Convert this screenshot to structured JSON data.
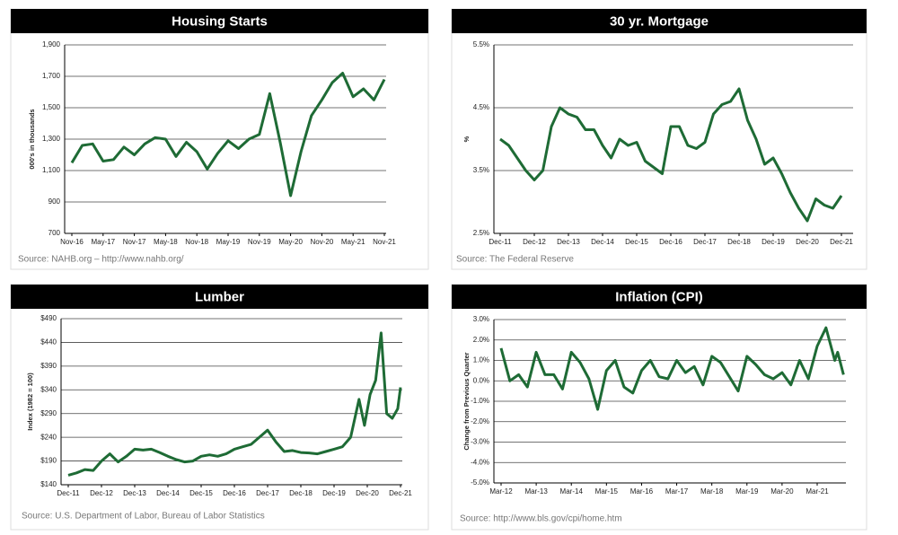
{
  "chart_data": [
    {
      "type": "line",
      "title": "Housing Starts",
      "ylabel": "000's in thousands",
      "source": "Source: NAHB.org – http://www.nahb.org/",
      "x": [
        "Nov-16",
        "Jan-17",
        "Mar-17",
        "May-17",
        "Jul-17",
        "Sep-17",
        "Nov-17",
        "Jan-18",
        "Mar-18",
        "May-18",
        "Jul-18",
        "Sep-18",
        "Nov-18",
        "Jan-19",
        "Mar-19",
        "May-19",
        "Jul-19",
        "Sep-19",
        "Nov-19",
        "Jan-20",
        "Mar-20",
        "May-20",
        "Jul-20",
        "Sep-20",
        "Nov-20",
        "Jan-21",
        "Mar-21",
        "May-21",
        "Jul-21",
        "Sep-21",
        "Nov-21"
      ],
      "series": [
        {
          "color": "#1e6b35",
          "values": [
            1150,
            1260,
            1270,
            1160,
            1170,
            1250,
            1200,
            1270,
            1310,
            1300,
            1190,
            1280,
            1220,
            1110,
            1210,
            1290,
            1240,
            1300,
            1330,
            1590,
            1280,
            940,
            1220,
            1450,
            1550,
            1660,
            1720,
            1570,
            1620,
            1550,
            1680
          ]
        }
      ],
      "ylim": [
        700,
        1900
      ],
      "yticks": [
        {
          "value": 700,
          "label": "700"
        },
        {
          "value": 900,
          "label": "900"
        },
        {
          "value": 1100,
          "label": "1,100"
        },
        {
          "value": 1300,
          "label": "1,300"
        },
        {
          "value": 1500,
          "label": "1,500"
        },
        {
          "value": 1700,
          "label": "1,700"
        },
        {
          "value": 1900,
          "label": "1,900"
        }
      ],
      "xticks": [
        "Nov-16",
        "May-17",
        "Nov-17",
        "May-18",
        "Nov-18",
        "May-19",
        "Nov-19",
        "May-20",
        "Nov-20",
        "May-21",
        "Nov-21"
      ],
      "grid": true
    },
    {
      "type": "line",
      "title": "30 yr. Mortgage",
      "ylabel": "%",
      "source": "Source:  The Federal Reserve",
      "x": [
        "Dec-11",
        "Mar-12",
        "Jun-12",
        "Sep-12",
        "Dec-12",
        "Mar-13",
        "Jun-13",
        "Sep-13",
        "Dec-13",
        "Mar-14",
        "Jun-14",
        "Sep-14",
        "Dec-14",
        "Mar-15",
        "Jun-15",
        "Sep-15",
        "Dec-15",
        "Mar-16",
        "Jun-16",
        "Sep-16",
        "Dec-16",
        "Mar-17",
        "Jun-17",
        "Sep-17",
        "Dec-17",
        "Mar-18",
        "Jun-18",
        "Sep-18",
        "Dec-18",
        "Mar-19",
        "Jun-19",
        "Sep-19",
        "Dec-19",
        "Mar-20",
        "Jun-20",
        "Sep-20",
        "Dec-20",
        "Mar-21",
        "Jun-21",
        "Sep-21",
        "Dec-21"
      ],
      "series": [
        {
          "color": "#1e6b35",
          "values": [
            4.0,
            3.9,
            3.7,
            3.5,
            3.35,
            3.5,
            4.2,
            4.5,
            4.4,
            4.35,
            4.15,
            4.15,
            3.9,
            3.7,
            4.0,
            3.9,
            3.95,
            3.65,
            3.55,
            3.45,
            4.2,
            4.2,
            3.9,
            3.85,
            3.95,
            4.4,
            4.55,
            4.6,
            4.8,
            4.3,
            4.0,
            3.6,
            3.7,
            3.45,
            3.15,
            2.9,
            2.7,
            3.05,
            2.95,
            2.9,
            3.1
          ]
        }
      ],
      "ylim": [
        2.5,
        5.5
      ],
      "yticks": [
        {
          "value": 2.5,
          "label": "2.5%"
        },
        {
          "value": 3.5,
          "label": "3.5%"
        },
        {
          "value": 4.5,
          "label": "4.5%"
        },
        {
          "value": 5.5,
          "label": "5.5%"
        }
      ],
      "xticks": [
        "Dec-11",
        "Dec-12",
        "Dec-13",
        "Dec-14",
        "Dec-15",
        "Dec-16",
        "Dec-17",
        "Dec-18",
        "Dec-19",
        "Dec-20",
        "Dec-21"
      ],
      "grid": true
    },
    {
      "type": "line",
      "title": "Lumber",
      "ylabel": "Index (1982 = 100)",
      "source": "Source:  U.S. Department of Labor, Bureau of Labor Statistics",
      "x": [
        "Dec-11",
        "Mar-12",
        "Jun-12",
        "Sep-12",
        "Dec-12",
        "Mar-13",
        "Jun-13",
        "Sep-13",
        "Dec-13",
        "Mar-14",
        "Jun-14",
        "Sep-14",
        "Dec-14",
        "Mar-15",
        "Jun-15",
        "Sep-15",
        "Dec-15",
        "Mar-16",
        "Jun-16",
        "Sep-16",
        "Dec-16",
        "Mar-17",
        "Jun-17",
        "Sep-17",
        "Dec-17",
        "Mar-18",
        "Jun-18",
        "Sep-18",
        "Dec-18",
        "Mar-19",
        "Jun-19",
        "Sep-19",
        "Dec-19",
        "Mar-20",
        "Jun-20",
        "Sep-20",
        "Nov-20",
        "Jan-21",
        "Mar-21",
        "May-21",
        "Jul-21",
        "Sep-21",
        "Nov-21",
        "Dec-21"
      ],
      "series": [
        {
          "color": "#1e6b35",
          "values": [
            160,
            165,
            172,
            170,
            190,
            205,
            188,
            200,
            215,
            213,
            215,
            208,
            200,
            193,
            188,
            190,
            200,
            203,
            200,
            205,
            215,
            220,
            225,
            240,
            255,
            230,
            210,
            212,
            208,
            207,
            205,
            210,
            215,
            220,
            240,
            320,
            265,
            330,
            360,
            460,
            290,
            280,
            300,
            345
          ]
        }
      ],
      "ylim": [
        140,
        490
      ],
      "yticks": [
        {
          "value": 140,
          "label": "$140"
        },
        {
          "value": 190,
          "label": "$190"
        },
        {
          "value": 240,
          "label": "$240"
        },
        {
          "value": 290,
          "label": "$290"
        },
        {
          "value": 340,
          "label": "$340"
        },
        {
          "value": 390,
          "label": "$390"
        },
        {
          "value": 440,
          "label": "$440"
        },
        {
          "value": 490,
          "label": "$490"
        }
      ],
      "xticks": [
        "Dec-11",
        "Dec-12",
        "Dec-13",
        "Dec-14",
        "Dec-15",
        "Dec-16",
        "Dec-17",
        "Dec-18",
        "Dec-19",
        "Dec-20",
        "Dec-21"
      ],
      "grid": true
    },
    {
      "type": "line",
      "title": "Inflation (CPI)",
      "ylabel": "Change from Previous Quarter",
      "source": "Source: http://www.bls.gov/cpi/home.htm",
      "x": [
        "Mar-12",
        "Jun-12",
        "Sep-12",
        "Dec-12",
        "Mar-13",
        "Jun-13",
        "Sep-13",
        "Dec-13",
        "Mar-14",
        "Jun-14",
        "Sep-14",
        "Dec-14",
        "Mar-15",
        "Jun-15",
        "Sep-15",
        "Dec-15",
        "Mar-16",
        "Jun-16",
        "Sep-16",
        "Dec-16",
        "Mar-17",
        "Jun-17",
        "Sep-17",
        "Dec-17",
        "Mar-18",
        "Jun-18",
        "Sep-18",
        "Dec-18",
        "Mar-19",
        "Jun-19",
        "Sep-19",
        "Dec-19",
        "Mar-20",
        "Jun-20",
        "Sep-20",
        "Dec-20",
        "Mar-21",
        "Jun-21",
        "Sep-21",
        "Oct-21",
        "Dec-21"
      ],
      "series": [
        {
          "color": "#1e6b35",
          "values": [
            1.6,
            0.0,
            0.3,
            -0.3,
            1.4,
            0.3,
            0.3,
            -0.4,
            1.4,
            0.9,
            0.1,
            -1.4,
            0.5,
            1.0,
            -0.3,
            -0.6,
            0.5,
            1.0,
            0.2,
            0.1,
            1.0,
            0.4,
            0.7,
            -0.2,
            1.2,
            0.9,
            0.2,
            -0.5,
            1.2,
            0.8,
            0.3,
            0.1,
            0.4,
            -0.2,
            1.0,
            0.1,
            1.7,
            2.6,
            1.0,
            1.4,
            0.3
          ]
        }
      ],
      "ylim": [
        -5,
        3
      ],
      "yticks": [
        {
          "value": -5,
          "label": "-5.0%"
        },
        {
          "value": -4,
          "label": "-4.0%"
        },
        {
          "value": -3,
          "label": "-3.0%"
        },
        {
          "value": -2,
          "label": "-2.0%"
        },
        {
          "value": -1,
          "label": "-1.0%"
        },
        {
          "value": 0,
          "label": "0.0%"
        },
        {
          "value": 1,
          "label": "1.0%"
        },
        {
          "value": 2,
          "label": "2.0%"
        },
        {
          "value": 3,
          "label": "3.0%"
        }
      ],
      "xticks": [
        "Mar-12",
        "Mar-13",
        "Mar-14",
        "Mar-15",
        "Mar-16",
        "Mar-17",
        "Mar-18",
        "Mar-19",
        "Mar-20",
        "Mar-21"
      ],
      "grid": true
    }
  ]
}
